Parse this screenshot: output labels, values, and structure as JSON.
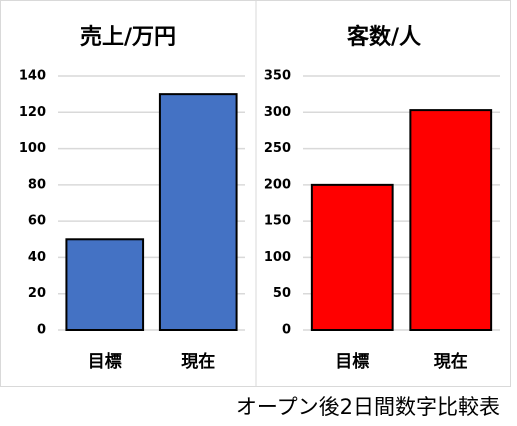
{
  "chart_data": [
    {
      "type": "bar",
      "title": "売上/万円",
      "categories": [
        "目標",
        "現在"
      ],
      "values": [
        50,
        130
      ],
      "color": "#4472c4",
      "ylim": [
        0,
        140
      ],
      "yticks": [
        0,
        20,
        40,
        60,
        80,
        100,
        120,
        140
      ],
      "grid": true
    },
    {
      "type": "bar",
      "title": "客数/人",
      "categories": [
        "目標",
        "現在"
      ],
      "values": [
        200,
        303
      ],
      "color": "#ff0000",
      "ylim": [
        0,
        350
      ],
      "yticks": [
        0,
        50,
        100,
        150,
        200,
        250,
        300,
        350
      ],
      "grid": true
    }
  ],
  "caption": "オープン後2日間数字比較表"
}
